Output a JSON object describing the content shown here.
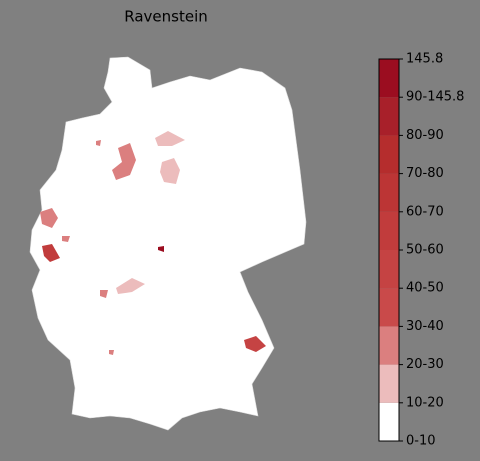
{
  "chart_data": {
    "type": "map",
    "title": "Ravenstein",
    "legend_labels": [
      "0-10",
      "10-20",
      "20-30",
      "30-40",
      "40-50",
      "50-60",
      "60-70",
      "70-80",
      "80-90",
      "90-145.8",
      "145.8"
    ],
    "colors": [
      "#ffffff",
      "#ecbcbc",
      "#db7f7f",
      "#c94a4a",
      "#c54343",
      "#c13c3c",
      "#bc3535",
      "#b52d2d",
      "#a8202a",
      "#9b0d20"
    ]
  }
}
